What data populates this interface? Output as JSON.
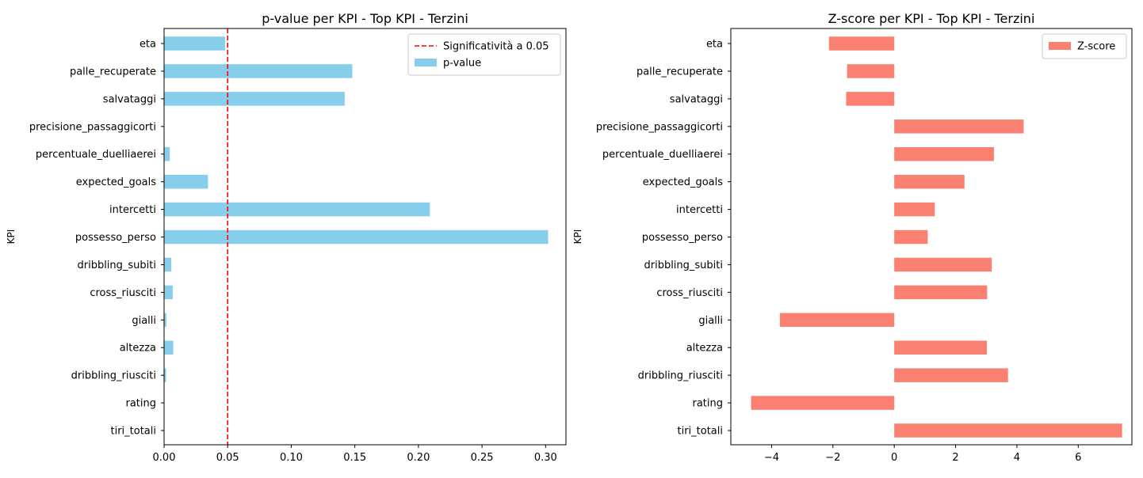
{
  "chart_data": [
    {
      "type": "bar",
      "orientation": "horizontal",
      "title": "p-value per KPI - Top KPI - Terzini",
      "xlabel": "",
      "ylabel": "KPI",
      "categories": [
        "eta",
        "palle_recuperate",
        "salvataggi",
        "precisione_passaggicorti",
        "percentuale_duelliaerei",
        "expected_goals",
        "intercetti",
        "possesso_perso",
        "dribbling_subiti",
        "cross_riusciti",
        "gialli",
        "altezza",
        "dribbling_riusciti",
        "rating",
        "tiri_totali"
      ],
      "series": [
        {
          "name": "p-value",
          "color": "#87ceeb",
          "values": [
            0.048,
            0.148,
            0.142,
            0.0002,
            0.0045,
            0.0345,
            0.209,
            0.302,
            0.0057,
            0.0068,
            0.0018,
            0.0072,
            0.0016,
            0.0001,
            1e-05
          ]
        }
      ],
      "reference_line": {
        "value": 0.05,
        "label": "Significatività a 0.05",
        "color": "#ff0000",
        "style": "dashed"
      },
      "xlim": [
        0,
        0.316
      ],
      "xticks": [
        0.0,
        0.05,
        0.1,
        0.15,
        0.2,
        0.25,
        0.3
      ],
      "xtick_labels": [
        "0.00",
        "0.05",
        "0.10",
        "0.15",
        "0.20",
        "0.25",
        "0.30"
      ],
      "legend": {
        "placement": "top-right",
        "entries": [
          "Significatività a 0.05",
          "p-value"
        ]
      },
      "grid": false
    },
    {
      "type": "bar",
      "orientation": "horizontal",
      "title": "Z-score per KPI - Top KPI - Terzini",
      "xlabel": "",
      "ylabel": "KPI",
      "categories": [
        "eta",
        "palle_recuperate",
        "salvataggi",
        "precisione_passaggicorti",
        "percentuale_duelliaerei",
        "expected_goals",
        "intercetti",
        "possesso_perso",
        "dribbling_subiti",
        "cross_riusciti",
        "gialli",
        "altezza",
        "dribbling_riusciti",
        "rating",
        "tiri_totali"
      ],
      "series": [
        {
          "name": "Z-score",
          "color": "#fa8072",
          "values": [
            -2.13,
            -1.54,
            -1.57,
            4.22,
            3.25,
            2.29,
            1.32,
            1.09,
            3.18,
            3.03,
            -3.73,
            3.02,
            3.71,
            -4.67,
            7.43
          ]
        }
      ],
      "xlim": [
        -5.33,
        7.75
      ],
      "xticks": [
        -4,
        -2,
        0,
        2,
        4,
        6
      ],
      "xtick_labels": [
        "−4",
        "−2",
        "0",
        "2",
        "4",
        "6"
      ],
      "legend": {
        "placement": "top-right",
        "entries": [
          "Z-score"
        ]
      },
      "grid": false
    }
  ]
}
